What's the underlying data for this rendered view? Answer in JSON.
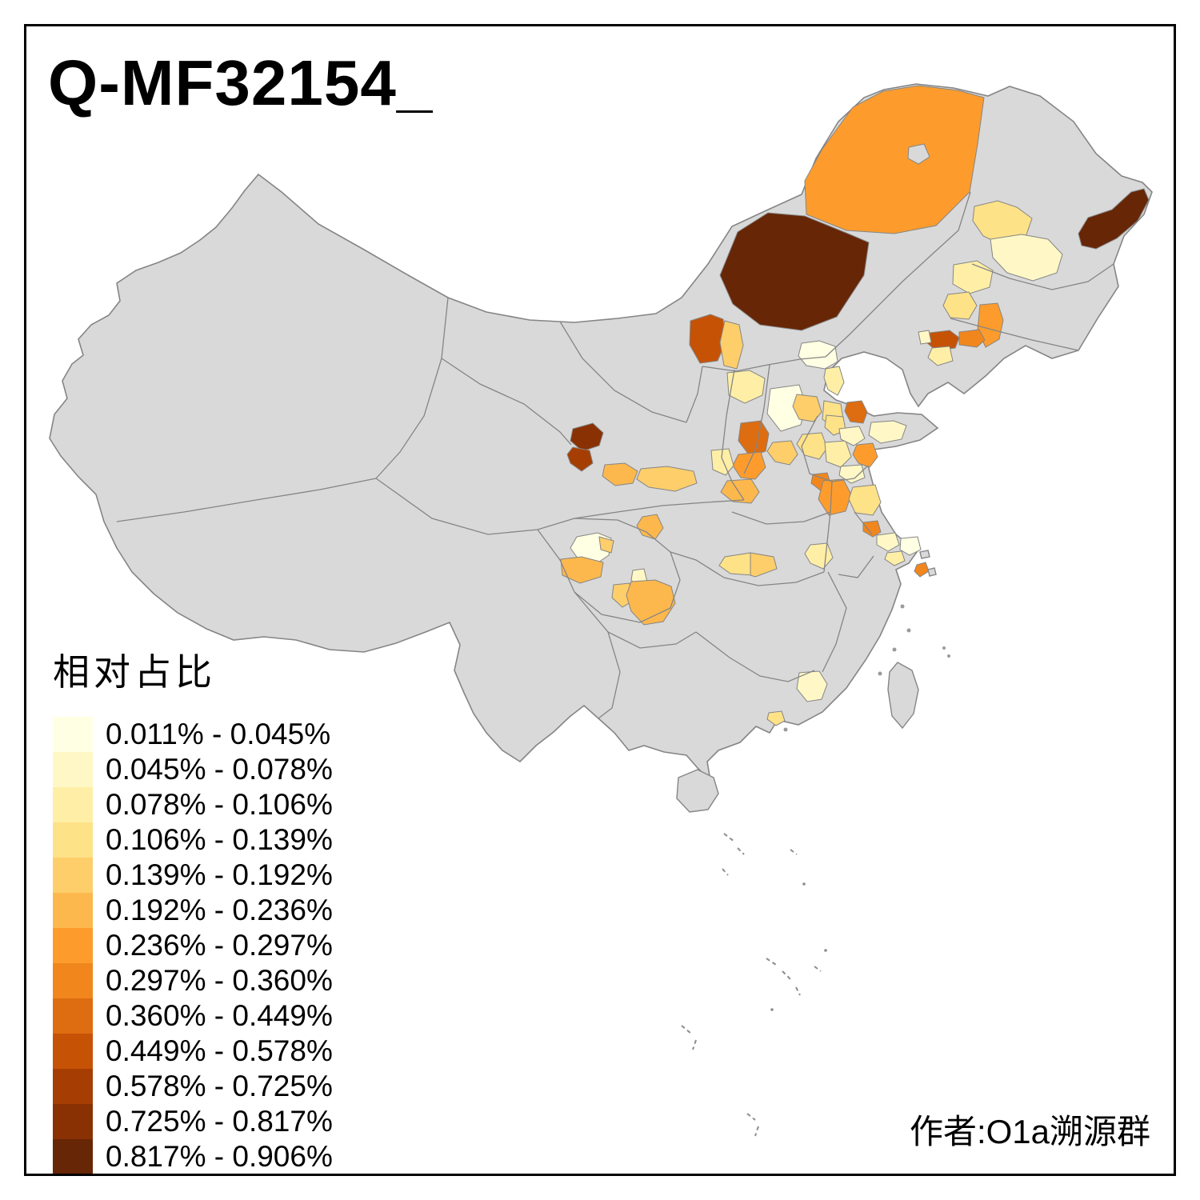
{
  "title": "Q-MF32154_",
  "attribution": "作者:O1a溯源群",
  "legend": {
    "title": "相对占比",
    "items": [
      {
        "label": "0.011% - 0.045%",
        "color": "#FFFFE3"
      },
      {
        "label": "0.045% - 0.078%",
        "color": "#FFF8C6"
      },
      {
        "label": "0.078% - 0.106%",
        "color": "#FFEFA6"
      },
      {
        "label": "0.106% - 0.139%",
        "color": "#FEE288"
      },
      {
        "label": "0.139% - 0.192%",
        "color": "#FDCE6A"
      },
      {
        "label": "0.192% - 0.236%",
        "color": "#FDB84D"
      },
      {
        "label": "0.236% - 0.297%",
        "color": "#FD9C2D"
      },
      {
        "label": "0.297% - 0.360%",
        "color": "#F1861D"
      },
      {
        "label": "0.360% - 0.449%",
        "color": "#DD6D10"
      },
      {
        "label": "0.449% - 0.578%",
        "color": "#C65206"
      },
      {
        "label": "0.578% - 0.725%",
        "color": "#A63E03"
      },
      {
        "label": "0.725% - 0.817%",
        "color": "#8A3104"
      },
      {
        "label": "0.817% - 0.906%",
        "color": "#672606"
      }
    ]
  },
  "map": {
    "base_color": "#D9D9D9",
    "boundary_color": "#858585",
    "sea_color": "#FFFFFF",
    "regions": [
      {
        "id": "r01",
        "level": 7
      },
      {
        "id": "r02",
        "level": 13
      },
      {
        "id": "r03",
        "level": 13
      },
      {
        "id": "r04",
        "level": 4
      },
      {
        "id": "r05",
        "level": 2
      },
      {
        "id": "r06",
        "level": 3
      },
      {
        "id": "r07",
        "level": 4
      },
      {
        "id": "r08",
        "level": 7
      },
      {
        "id": "r09",
        "level": 10
      },
      {
        "id": "r10",
        "level": 8
      },
      {
        "id": "r11",
        "level": 2
      },
      {
        "id": "r12",
        "level": 3
      },
      {
        "id": "r13",
        "level": 10
      },
      {
        "id": "r14",
        "level": 5
      },
      {
        "id": "r15",
        "level": 3
      },
      {
        "id": "r16",
        "level": 1
      },
      {
        "id": "r17",
        "level": 3
      },
      {
        "id": "r18",
        "level": 1
      },
      {
        "id": "r19",
        "level": 5
      },
      {
        "id": "r20",
        "level": 4
      },
      {
        "id": "r21",
        "level": 4
      },
      {
        "id": "r22",
        "level": 9
      },
      {
        "id": "r23",
        "level": 7
      },
      {
        "id": "r24",
        "level": 3
      },
      {
        "id": "r25",
        "level": 9
      },
      {
        "id": "r26",
        "level": 2
      },
      {
        "id": "r27",
        "level": 4
      },
      {
        "id": "r28",
        "level": 3
      },
      {
        "id": "r29",
        "level": 2
      },
      {
        "id": "r30",
        "level": 7
      },
      {
        "id": "r31",
        "level": 2
      },
      {
        "id": "r32",
        "level": 5
      },
      {
        "id": "r33",
        "level": 6
      },
      {
        "id": "r34",
        "level": 8
      },
      {
        "id": "r35",
        "level": 7
      },
      {
        "id": "r36",
        "level": 4
      },
      {
        "id": "r37",
        "level": 8
      },
      {
        "id": "r38",
        "level": 2
      },
      {
        "id": "r39",
        "level": 1
      },
      {
        "id": "r40",
        "level": 3
      },
      {
        "id": "r41",
        "level": 8
      },
      {
        "id": "r42",
        "level": 3
      },
      {
        "id": "r43",
        "level": 4
      },
      {
        "id": "r44",
        "level": 5
      },
      {
        "id": "r45",
        "level": 12
      },
      {
        "id": "r46",
        "level": 11
      },
      {
        "id": "r47",
        "level": 6
      },
      {
        "id": "r48",
        "level": 5
      },
      {
        "id": "r49",
        "level": 6
      },
      {
        "id": "r50",
        "level": 1
      },
      {
        "id": "r51",
        "level": 5
      },
      {
        "id": "r52",
        "level": 6
      },
      {
        "id": "r53",
        "level": 2
      },
      {
        "id": "r54",
        "level": 5
      },
      {
        "id": "r55",
        "level": 6
      },
      {
        "id": "r56",
        "level": 2
      },
      {
        "id": "r57",
        "level": 4
      }
    ]
  }
}
